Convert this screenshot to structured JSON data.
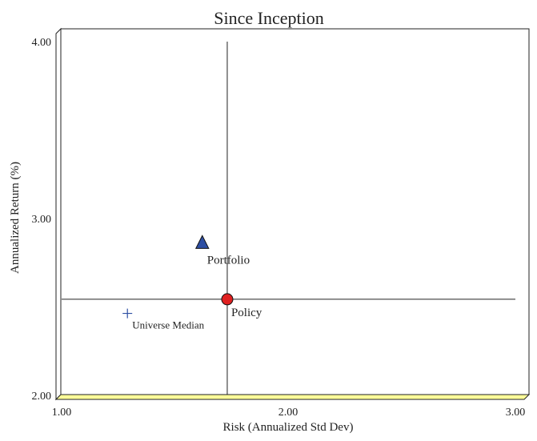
{
  "chart_data": {
    "type": "scatter",
    "title": "Since Inception",
    "xlabel": "Risk (Annualized Std Dev)",
    "ylabel": "Annualized Return (%)",
    "xlim": [
      1.0,
      3.0
    ],
    "ylim": [
      2.0,
      4.0
    ],
    "xticks": [
      "1.00",
      "2.00",
      "3.00"
    ],
    "yticks": [
      "2.00",
      "3.00",
      "4.00"
    ],
    "grid": false,
    "points": [
      {
        "name": "Portfolio",
        "x": 1.62,
        "y": 2.86,
        "marker": "triangle",
        "color": "#2e4fa3"
      },
      {
        "name": "Policy",
        "x": 1.73,
        "y": 2.54,
        "marker": "circle",
        "color": "#e02020"
      },
      {
        "name": "Universe Median",
        "x": 1.29,
        "y": 2.46,
        "marker": "plus",
        "color": "#2e4fa3"
      }
    ],
    "reference_lines": {
      "vertical_x": 1.73,
      "horizontal_y": 2.54
    },
    "floor_color": "#ffff99"
  }
}
